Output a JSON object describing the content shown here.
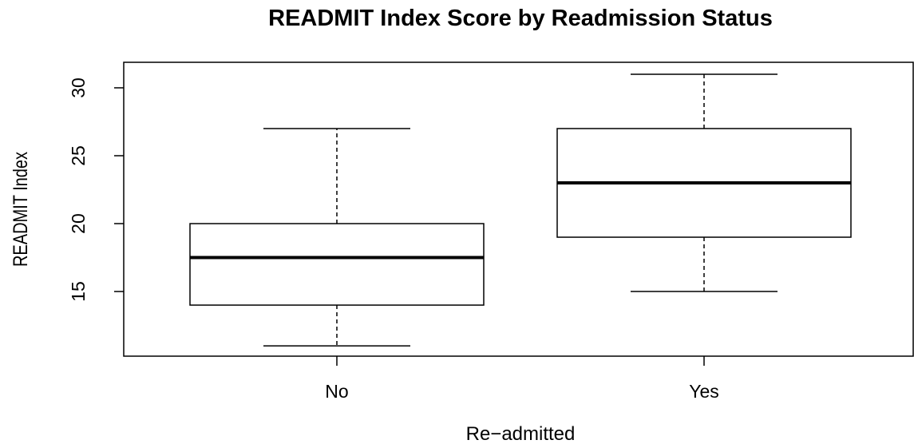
{
  "chart_data": {
    "type": "box",
    "title": "READMIT Index Score by Readmission Status",
    "x_label": "Re−admitted",
    "y_label": "READMIT Index",
    "categories": [
      "No",
      "Yes"
    ],
    "min": [
      11,
      15
    ],
    "q1": [
      14,
      19
    ],
    "median": [
      17.5,
      23
    ],
    "q3": [
      20,
      27
    ],
    "max": [
      27,
      31
    ],
    "ylim": [
      10.24,
      31.88
    ],
    "yticks": [
      15,
      20,
      25,
      30
    ]
  }
}
